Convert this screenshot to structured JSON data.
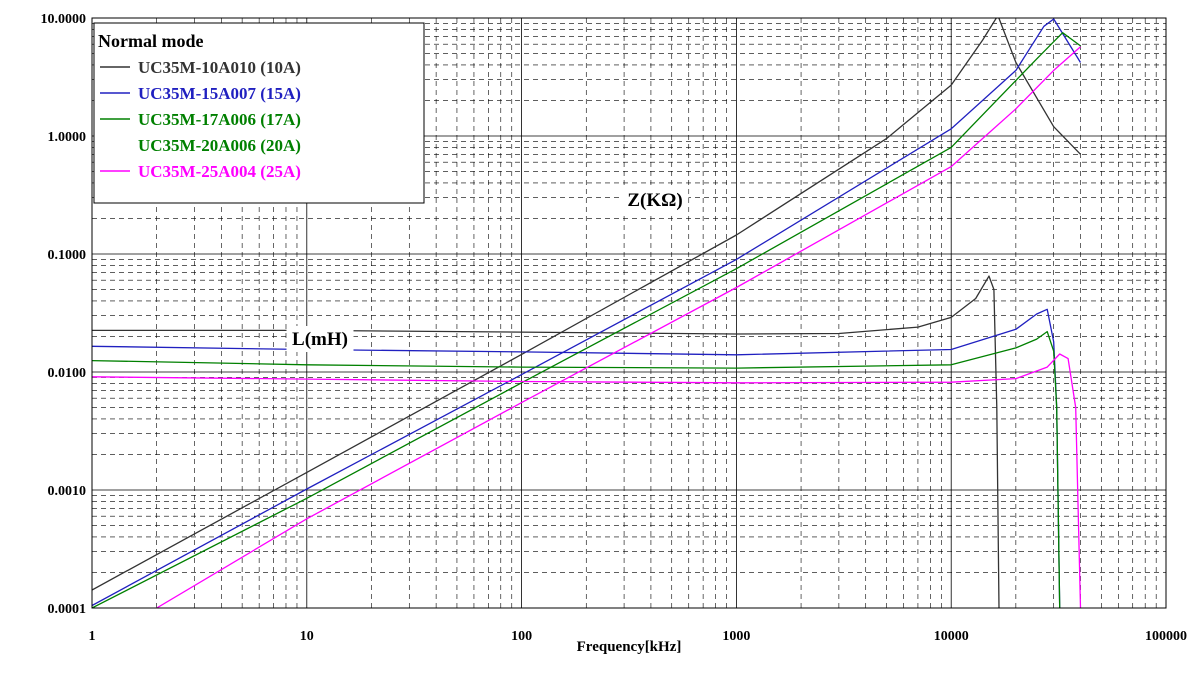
{
  "chart_data": {
    "type": "line",
    "title": "",
    "xlabel": "Frequency[kHz]",
    "ylabel": "",
    "x_scale": "log",
    "y_scale": "log",
    "xlim": [
      1,
      100000
    ],
    "ylim": [
      0.0001,
      10
    ],
    "grid": true,
    "legend_position": "top-left",
    "x_ticks": [
      "1",
      "10",
      "100",
      "1000",
      "10000",
      "100000"
    ],
    "y_ticks": [
      "0.0001",
      "0.0010",
      "0.0100",
      "0.1000",
      "1.0000",
      "10.0000"
    ],
    "legend_title": "Normal mode",
    "annotations": [
      {
        "text": "Z(KΩ)",
        "x": 300,
        "y": 0.33
      },
      {
        "text": "L(mH)",
        "x": 7,
        "y": 0.0175
      }
    ],
    "series": [
      {
        "name": "UC35M-10A010 (10A)",
        "color": "#333333",
        "impedance": {
          "x": [
            1,
            10,
            100,
            1000,
            5000,
            10000,
            14000,
            16500,
            20000,
            30000,
            40000
          ],
          "y": [
            0.000142,
            0.00141,
            0.0141,
            0.145,
            0.95,
            2.7,
            6.5,
            10.5,
            4.2,
            1.2,
            0.7
          ]
        },
        "inductance": {
          "x": [
            1,
            10,
            100,
            1000,
            3000,
            7000,
            10000,
            13000,
            15000,
            15800,
            16300,
            16700
          ],
          "y": [
            0.0225,
            0.0225,
            0.0218,
            0.021,
            0.0212,
            0.024,
            0.029,
            0.042,
            0.065,
            0.05,
            0.005,
            0.0001
          ]
        }
      },
      {
        "name": "UC35M-15A007 (15A)",
        "color": "#2020c0",
        "impedance": {
          "x": [
            1,
            10,
            100,
            1000,
            10000,
            20000,
            27000,
            30000,
            40000
          ],
          "y": [
            0.000105,
            0.00102,
            0.0095,
            0.09,
            1.15,
            3.6,
            8.5,
            9.8,
            4.2
          ]
        },
        "inductance": {
          "x": [
            1,
            10,
            100,
            1000,
            10000,
            20000,
            25000,
            28000,
            30000,
            31000,
            32000
          ],
          "y": [
            0.0165,
            0.0155,
            0.0148,
            0.014,
            0.0155,
            0.023,
            0.031,
            0.034,
            0.018,
            0.005,
            0.0001
          ]
        }
      },
      {
        "name": "UC35M-17A006 (17A)",
        "color": "#008000",
        "impedance": {
          "x": [
            1,
            10,
            100,
            1000,
            10000,
            25000,
            33000,
            40000
          ],
          "y": [
            0.0001,
            0.00085,
            0.0081,
            0.075,
            0.8,
            4.5,
            7.5,
            5.8
          ]
        },
        "inductance": {
          "x": [
            1,
            10,
            100,
            1000,
            10000,
            20000,
            25000,
            28000,
            30000,
            31000,
            32000
          ],
          "y": [
            0.0125,
            0.0115,
            0.011,
            0.0108,
            0.0115,
            0.016,
            0.019,
            0.022,
            0.015,
            0.005,
            0.0001
          ]
        }
      },
      {
        "name": "UC35M-20A006 (20A)",
        "color": "#008000",
        "impedance": {
          "x": [],
          "y": []
        },
        "inductance": {
          "x": [],
          "y": []
        }
      },
      {
        "name": "UC35M-25A004 (25A)",
        "color": "#ff00ff",
        "impedance": {
          "x": [
            2,
            10,
            100,
            1000,
            10000,
            20000,
            30000,
            40000
          ],
          "y": [
            0.0001,
            0.00057,
            0.0055,
            0.052,
            0.55,
            1.7,
            3.6,
            5.7
          ]
        },
        "inductance": {
          "x": [
            1,
            10,
            100,
            1000,
            10000,
            20000,
            28000,
            32000,
            35000,
            38000,
            40000
          ],
          "y": [
            0.0091,
            0.0087,
            0.0083,
            0.0081,
            0.0082,
            0.0088,
            0.011,
            0.0142,
            0.013,
            0.005,
            0.0001
          ]
        }
      }
    ]
  }
}
